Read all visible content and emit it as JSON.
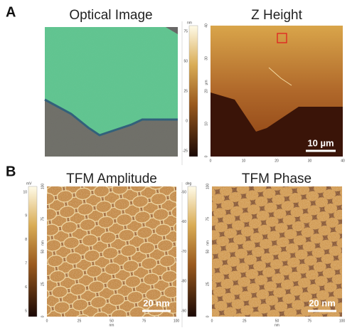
{
  "panel_a": {
    "label": "A",
    "optical": {
      "title": "Optical Image"
    },
    "z_height": {
      "title": "Z Height",
      "colorbar": {
        "unit": "nm",
        "ticks": [
          "75",
          "50",
          "25",
          "0",
          "-25"
        ]
      },
      "x_ticks": [
        "0",
        "10",
        "20",
        "30",
        "40"
      ],
      "y_ticks": [
        "40",
        "30",
        "20",
        "10",
        "0"
      ],
      "y_unit": "µm",
      "scale_bar": "10 µm"
    }
  },
  "panel_b": {
    "label": "B",
    "amplitude": {
      "title": "TFM Amplitude",
      "colorbar": {
        "unit": "mV",
        "ticks": [
          "10",
          "9",
          "8",
          "7",
          "6",
          "5"
        ]
      },
      "x_ticks": [
        "0",
        "25",
        "50",
        "75",
        "100"
      ],
      "x_unit": "nm",
      "y_ticks": [
        "100",
        "75",
        "50",
        "25",
        "0"
      ],
      "y_unit": "nm",
      "scale_bar": "20 nm"
    },
    "phase": {
      "title": "TFM Phase",
      "colorbar": {
        "unit": "deg",
        "ticks": [
          "-50",
          "-60",
          "-70",
          "-80",
          "-90"
        ]
      },
      "x_ticks": [
        "0",
        "25",
        "50",
        "75",
        "100"
      ],
      "x_unit": "nm",
      "y_ticks": [
        "100",
        "75",
        "50",
        "25",
        "0"
      ],
      "y_unit": "nm",
      "scale_bar": "20 nm"
    }
  }
}
